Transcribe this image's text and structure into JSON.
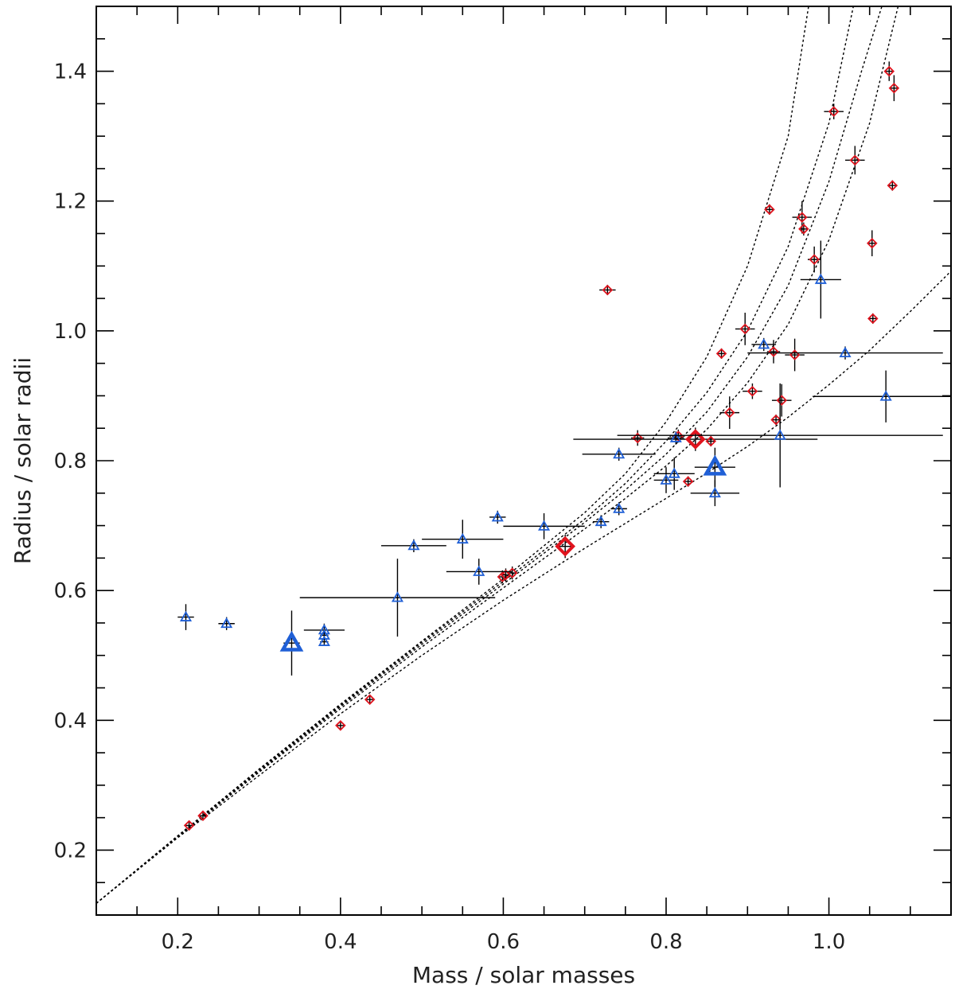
{
  "chart_data": {
    "type": "scatter",
    "title": "",
    "xlabel": "Mass / solar masses",
    "ylabel": "Radius / solar radii",
    "xlim": [
      0.1,
      1.15
    ],
    "ylim": [
      0.1,
      1.5
    ],
    "xticks": [
      0.2,
      0.4,
      0.6,
      0.8,
      1.0
    ],
    "xtick_labels": [
      "0.2",
      "0.4",
      "0.6",
      "0.8",
      "1.0"
    ],
    "yticks": [
      0.2,
      0.4,
      0.6,
      0.8,
      1.0,
      1.2,
      1.4
    ],
    "ytick_labels": [
      "0.2",
      "0.4",
      "0.6",
      "0.8",
      "1.0",
      "1.2",
      "1.4"
    ],
    "grid": false,
    "colors": {
      "diamond": "#e0141e",
      "triangle": "#1f5fd6",
      "errorbar": "#000000",
      "curve": "#000000"
    },
    "series": [
      {
        "marker": "diamond",
        "points": [
          {
            "x": 0.214,
            "y": 0.238,
            "xerr": 0.004,
            "yerr": 0.005
          },
          {
            "x": 0.231,
            "y": 0.253,
            "xerr": 0.004,
            "yerr": 0.005
          },
          {
            "x": 0.4,
            "y": 0.392,
            "xerr": 0.004,
            "yerr": 0.006
          },
          {
            "x": 0.436,
            "y": 0.432,
            "xerr": 0.004,
            "yerr": 0.006
          },
          {
            "x": 0.599,
            "y": 0.621,
            "xerr": 0.005,
            "yerr": 0.01
          },
          {
            "x": 0.611,
            "y": 0.627,
            "xerr": 0.005,
            "yerr": 0.01
          },
          {
            "x": 0.603,
            "y": 0.624,
            "xerr": 0.005,
            "yerr": 0.01
          },
          {
            "x": 0.676,
            "y": 0.668,
            "xerr": 0.01,
            "yerr": 0.018,
            "size": "large"
          },
          {
            "x": 0.728,
            "y": 1.063,
            "xerr": 0.01,
            "yerr": 0.008
          },
          {
            "x": 0.765,
            "y": 0.835,
            "xerr": 0.008,
            "yerr": 0.012
          },
          {
            "x": 0.815,
            "y": 0.838,
            "xerr": 0.008,
            "yerr": 0.01
          },
          {
            "x": 0.827,
            "y": 0.768,
            "xerr": 0.005,
            "yerr": 0.008
          },
          {
            "x": 0.836,
            "y": 0.833,
            "xerr": 0.15,
            "yerr": 0.018,
            "size": "large"
          },
          {
            "x": 0.855,
            "y": 0.83,
            "xerr": 0.005,
            "yerr": 0.008
          },
          {
            "x": 0.868,
            "y": 0.965,
            "xerr": 0.005,
            "yerr": 0.008
          },
          {
            "x": 0.878,
            "y": 0.874,
            "xerr": 0.012,
            "yerr": 0.025
          },
          {
            "x": 0.897,
            "y": 1.003,
            "xerr": 0.012,
            "yerr": 0.025
          },
          {
            "x": 0.906,
            "y": 0.907,
            "xerr": 0.012,
            "yerr": 0.012
          },
          {
            "x": 0.927,
            "y": 1.187,
            "xerr": 0.005,
            "yerr": 0.008
          },
          {
            "x": 0.932,
            "y": 0.968,
            "xerr": 0.008,
            "yerr": 0.018
          },
          {
            "x": 0.935,
            "y": 0.863,
            "xerr": 0.005,
            "yerr": 0.008
          },
          {
            "x": 0.942,
            "y": 0.893,
            "xerr": 0.012,
            "yerr": 0.025
          },
          {
            "x": 0.958,
            "y": 0.963,
            "xerr": 0.012,
            "yerr": 0.025
          },
          {
            "x": 0.967,
            "y": 1.175,
            "xerr": 0.012,
            "yerr": 0.025
          },
          {
            "x": 0.969,
            "y": 1.157,
            "xerr": 0.005,
            "yerr": 0.01
          },
          {
            "x": 0.982,
            "y": 1.11,
            "xerr": 0.008,
            "yerr": 0.02
          },
          {
            "x": 1.006,
            "y": 1.338,
            "xerr": 0.012,
            "yerr": 0.012
          },
          {
            "x": 1.032,
            "y": 1.263,
            "xerr": 0.012,
            "yerr": 0.022
          },
          {
            "x": 1.053,
            "y": 1.135,
            "xerr": 0.005,
            "yerr": 0.02
          },
          {
            "x": 1.054,
            "y": 1.019,
            "xerr": 0.005,
            "yerr": 0.008
          },
          {
            "x": 1.074,
            "y": 1.4,
            "xerr": 0.005,
            "yerr": 0.015
          },
          {
            "x": 1.078,
            "y": 1.224,
            "xerr": 0.005,
            "yerr": 0.008
          },
          {
            "x": 1.08,
            "y": 1.374,
            "xerr": 0.005,
            "yerr": 0.02
          }
        ]
      },
      {
        "marker": "triangle",
        "points": [
          {
            "x": 0.21,
            "y": 0.559,
            "xerr": 0.01,
            "yerr": 0.02
          },
          {
            "x": 0.26,
            "y": 0.549,
            "xerr": 0.01,
            "yerr": 0.01
          },
          {
            "x": 0.34,
            "y": 0.519,
            "xerr": 0.01,
            "yerr": 0.05,
            "size": "large"
          },
          {
            "x": 0.38,
            "y": 0.539,
            "xerr": 0.025,
            "yerr": 0.01
          },
          {
            "x": 0.38,
            "y": 0.531,
            "xerr": 0.005,
            "yerr": 0.005
          },
          {
            "x": 0.38,
            "y": 0.521,
            "xerr": 0.005,
            "yerr": 0.005
          },
          {
            "x": 0.47,
            "y": 0.589,
            "xerr": 0.12,
            "yerr": 0.06
          },
          {
            "x": 0.49,
            "y": 0.669,
            "xerr": 0.04,
            "yerr": 0.01
          },
          {
            "x": 0.55,
            "y": 0.679,
            "xerr": 0.05,
            "yerr": 0.03
          },
          {
            "x": 0.57,
            "y": 0.629,
            "xerr": 0.04,
            "yerr": 0.02
          },
          {
            "x": 0.593,
            "y": 0.713,
            "xerr": 0.01,
            "yerr": 0.01
          },
          {
            "x": 0.65,
            "y": 0.699,
            "xerr": 0.05,
            "yerr": 0.02
          },
          {
            "x": 0.72,
            "y": 0.706,
            "xerr": 0.01,
            "yerr": 0.01
          },
          {
            "x": 0.742,
            "y": 0.726,
            "xerr": 0.01,
            "yerr": 0.01
          },
          {
            "x": 0.742,
            "y": 0.81,
            "xerr": 0.045,
            "yerr": 0.01
          },
          {
            "x": 0.8,
            "y": 0.77,
            "xerr": 0.015,
            "yerr": 0.02
          },
          {
            "x": 0.81,
            "y": 0.78,
            "xerr": 0.025,
            "yerr": 0.025
          },
          {
            "x": 0.812,
            "y": 0.835,
            "xerr": 0.01,
            "yerr": 0.01
          },
          {
            "x": 0.86,
            "y": 0.79,
            "xerr": 0.025,
            "yerr": 0.03,
            "size": "large"
          },
          {
            "x": 0.86,
            "y": 0.75,
            "xerr": 0.03,
            "yerr": 0.02
          },
          {
            "x": 0.92,
            "y": 0.979,
            "xerr": 0.015,
            "yerr": 0.01
          },
          {
            "x": 0.94,
            "y": 0.839,
            "xerr": 0.2,
            "yerr": 0.08
          },
          {
            "x": 0.99,
            "y": 1.079,
            "xerr": 0.025,
            "yerr": 0.06
          },
          {
            "x": 1.02,
            "y": 0.966,
            "xerr": 0.12,
            "yerr": 0.01
          },
          {
            "x": 1.07,
            "y": 0.899,
            "xerr": 0.09,
            "yerr": 0.04
          }
        ]
      }
    ],
    "curves": [
      {
        "points": [
          [
            0.1,
            0.118
          ],
          [
            0.2,
            0.222
          ],
          [
            0.3,
            0.325
          ],
          [
            0.4,
            0.425
          ],
          [
            0.5,
            0.522
          ],
          [
            0.6,
            0.618
          ],
          [
            0.7,
            0.72
          ],
          [
            0.75,
            0.78
          ],
          [
            0.8,
            0.86
          ],
          [
            0.85,
            0.96
          ],
          [
            0.9,
            1.1
          ],
          [
            0.95,
            1.3
          ],
          [
            0.975,
            1.5
          ]
        ]
      },
      {
        "points": [
          [
            0.1,
            0.118
          ],
          [
            0.2,
            0.222
          ],
          [
            0.3,
            0.324
          ],
          [
            0.4,
            0.423
          ],
          [
            0.5,
            0.52
          ],
          [
            0.6,
            0.614
          ],
          [
            0.7,
            0.71
          ],
          [
            0.75,
            0.765
          ],
          [
            0.8,
            0.83
          ],
          [
            0.85,
            0.905
          ],
          [
            0.9,
            1.0
          ],
          [
            0.95,
            1.13
          ],
          [
            1.0,
            1.32
          ],
          [
            1.03,
            1.5
          ]
        ]
      },
      {
        "points": [
          [
            0.1,
            0.118
          ],
          [
            0.2,
            0.221
          ],
          [
            0.3,
            0.322
          ],
          [
            0.4,
            0.421
          ],
          [
            0.5,
            0.517
          ],
          [
            0.6,
            0.61
          ],
          [
            0.7,
            0.705
          ],
          [
            0.75,
            0.755
          ],
          [
            0.8,
            0.81
          ],
          [
            0.85,
            0.875
          ],
          [
            0.9,
            0.96
          ],
          [
            0.95,
            1.07
          ],
          [
            1.0,
            1.23
          ],
          [
            1.04,
            1.4
          ],
          [
            1.065,
            1.5
          ]
        ]
      },
      {
        "points": [
          [
            0.1,
            0.118
          ],
          [
            0.2,
            0.22
          ],
          [
            0.3,
            0.32
          ],
          [
            0.4,
            0.418
          ],
          [
            0.5,
            0.513
          ],
          [
            0.6,
            0.604
          ],
          [
            0.7,
            0.695
          ],
          [
            0.75,
            0.742
          ],
          [
            0.8,
            0.792
          ],
          [
            0.85,
            0.848
          ],
          [
            0.9,
            0.92
          ],
          [
            0.95,
            1.01
          ],
          [
            1.0,
            1.14
          ],
          [
            1.05,
            1.32
          ],
          [
            1.085,
            1.5
          ]
        ]
      },
      {
        "points": [
          [
            0.1,
            0.118
          ],
          [
            0.2,
            0.219
          ],
          [
            0.3,
            0.315
          ],
          [
            0.4,
            0.41
          ],
          [
            0.5,
            0.5
          ],
          [
            0.6,
            0.585
          ],
          [
            0.7,
            0.665
          ],
          [
            0.8,
            0.742
          ],
          [
            0.85,
            0.781
          ],
          [
            0.9,
            0.822
          ],
          [
            0.95,
            0.867
          ],
          [
            1.0,
            0.917
          ],
          [
            1.05,
            0.97
          ],
          [
            1.1,
            1.03
          ],
          [
            1.15,
            1.092
          ]
        ]
      }
    ]
  }
}
